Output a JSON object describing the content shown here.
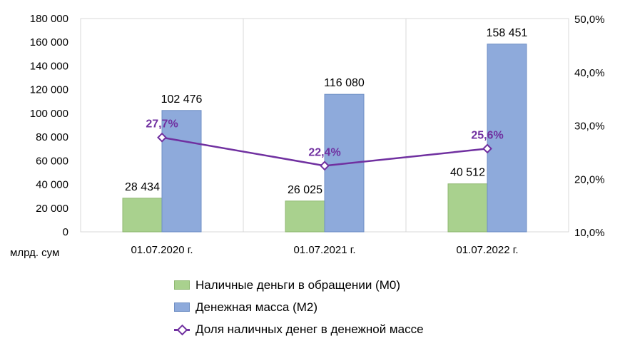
{
  "chart_data": {
    "type": "bar+line",
    "categories": [
      "01.07.2020 г.",
      "01.07.2021 г.",
      "01.07.2022 г."
    ],
    "series": [
      {
        "name": "Наличные  деньги в обращении (М0)",
        "kind": "bar",
        "axis": "left",
        "color": "#a9d18e",
        "values": [
          28434,
          26025,
          40512
        ],
        "labels": [
          "28 434",
          "26 025",
          "40 512"
        ]
      },
      {
        "name": "Денежная масса (М2)",
        "kind": "bar",
        "axis": "left",
        "color": "#8eaadb",
        "values": [
          102476,
          116080,
          158451
        ],
        "labels": [
          "102 476",
          "116 080",
          "158 451"
        ]
      },
      {
        "name": "Доля наличных  денег в денежной массе",
        "kind": "line",
        "axis": "right",
        "color": "#7030a0",
        "values": [
          27.7,
          22.4,
          25.6
        ],
        "labels": [
          "27,7%",
          "22,4%",
          "25,6%"
        ]
      }
    ],
    "y_left": {
      "min": 0,
      "max": 180000,
      "ticks": [
        "0",
        "20 000",
        "40 000",
        "60 000",
        "80 000",
        "100 000",
        "120 000",
        "140 000",
        "160 000",
        "180 000"
      ]
    },
    "y_right": {
      "min": 10,
      "max": 50,
      "ticks": [
        "10,0%",
        "20,0%",
        "30,0%",
        "40,0%",
        "50,0%"
      ]
    },
    "unit_label": "млрд. сум",
    "grid": true,
    "legend_position": "bottom"
  }
}
